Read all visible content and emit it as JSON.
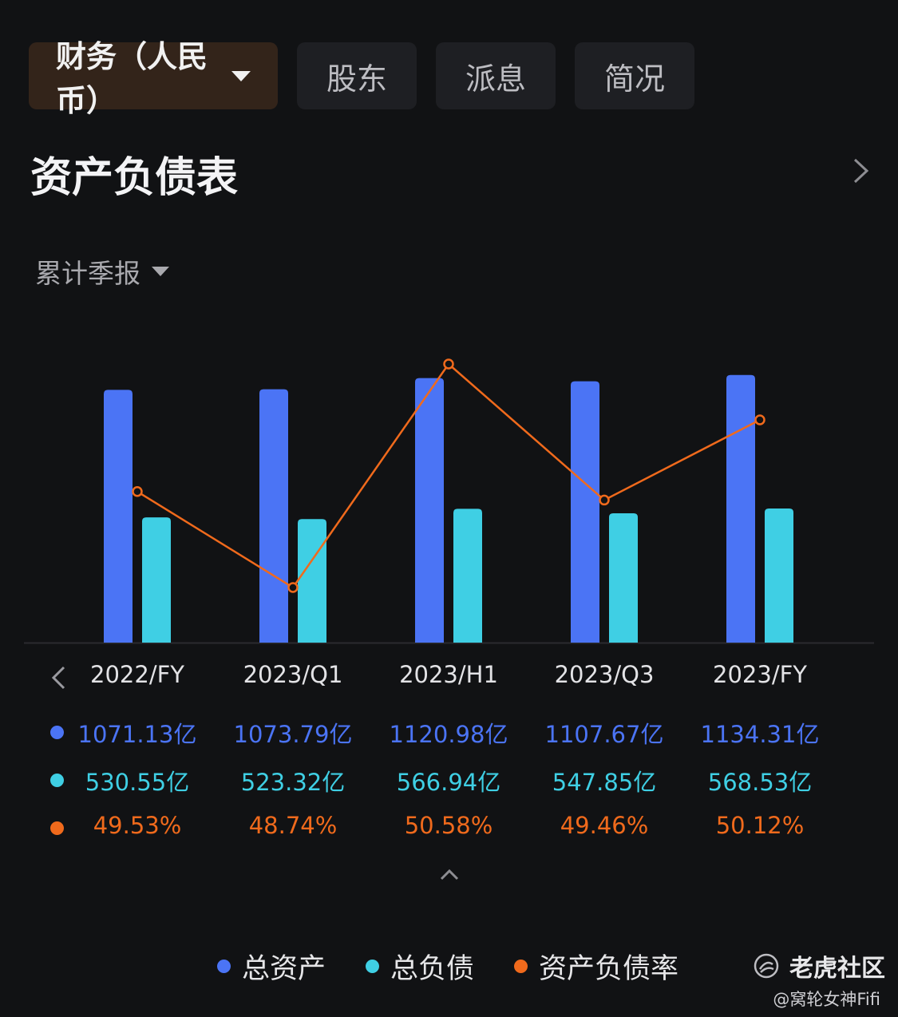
{
  "tabs": [
    {
      "label": "财务（人民币）",
      "active": true
    },
    {
      "label": "股东"
    },
    {
      "label": "派息"
    },
    {
      "label": "简况"
    }
  ],
  "section_title": "资产负债表",
  "period_selector": "累计季报",
  "colors": {
    "total_assets": "#4b74f5",
    "total_liabilities": "#3fcfe4",
    "debt_ratio": "#f06a1c"
  },
  "chart_data": {
    "type": "bar",
    "categories": [
      "2022/FY",
      "2023/Q1",
      "2023/H1",
      "2023/Q3",
      "2023/FY"
    ],
    "series": [
      {
        "name": "总资产",
        "values": [
          1071.13,
          1073.79,
          1120.98,
          1107.67,
          1134.31
        ],
        "labels": [
          "1071.13亿",
          "1073.79亿",
          "1120.98亿",
          "1107.67亿",
          "1134.31亿"
        ]
      },
      {
        "name": "总负债",
        "values": [
          530.55,
          523.32,
          566.94,
          547.85,
          568.53
        ],
        "labels": [
          "530.55亿",
          "523.32亿",
          "566.94亿",
          "547.85亿",
          "568.53亿"
        ]
      },
      {
        "name": "资产负债率",
        "type": "line",
        "values": [
          49.53,
          48.74,
          50.58,
          49.46,
          50.12
        ],
        "labels": [
          "49.53%",
          "48.74%",
          "50.58%",
          "49.46%",
          "50.12%"
        ]
      }
    ],
    "legend": "bottom"
  },
  "brand": "老虎社区",
  "handle": "@窝轮女神Fifi"
}
